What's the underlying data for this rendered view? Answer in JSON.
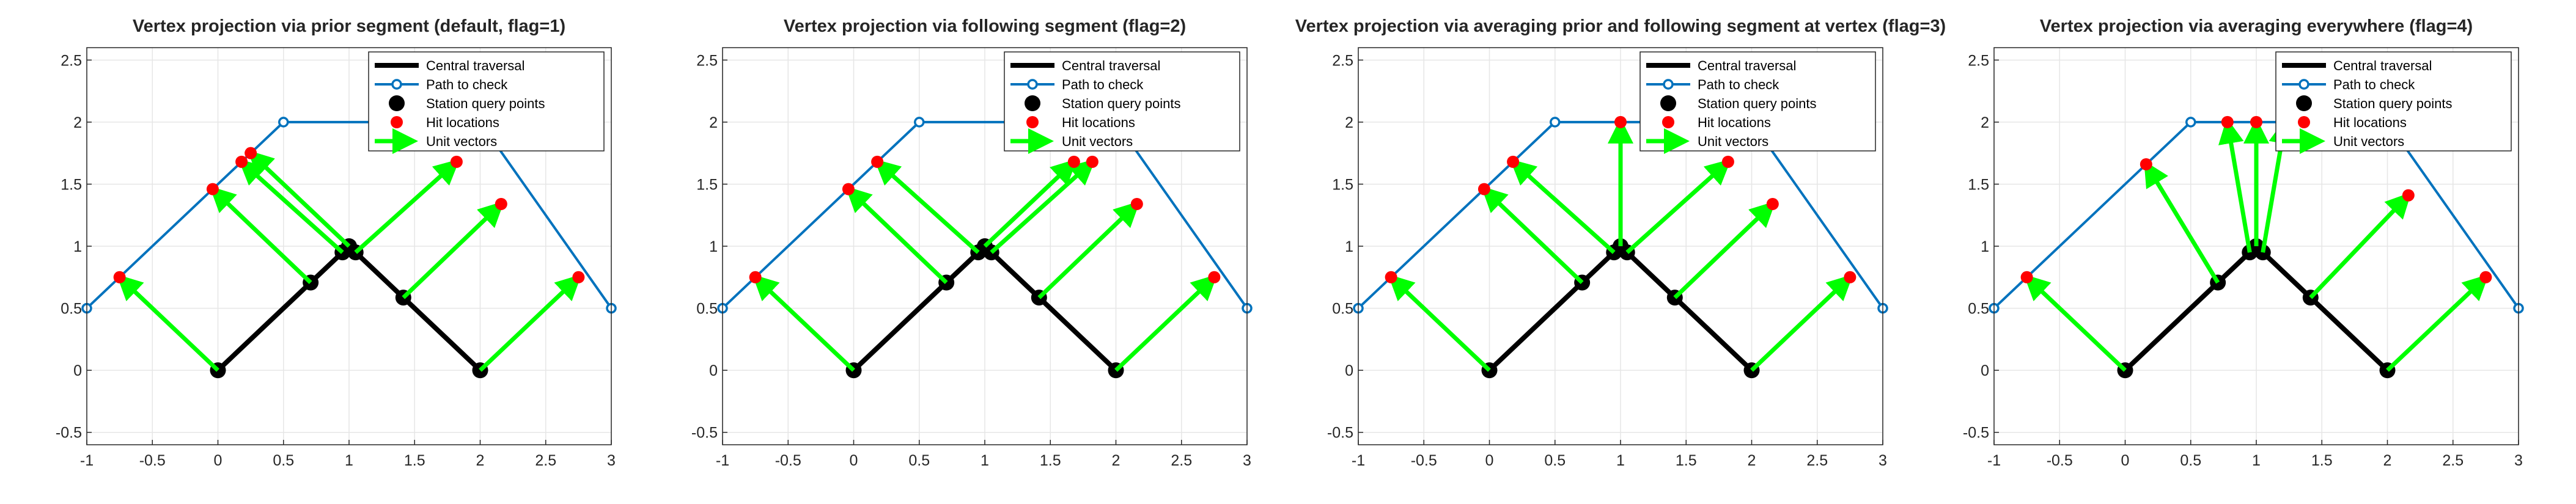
{
  "chart_data": [
    {
      "type": "line",
      "title": "Vertex projection via prior segment (default, flag=1)",
      "xlim": [
        -1,
        3
      ],
      "ylim": [
        -0.6,
        2.6
      ],
      "xticks": [
        "-1",
        "-0.5",
        "0",
        "0.5",
        "1",
        "1.5",
        "2",
        "2.5",
        "3"
      ],
      "yticks": [
        "-0.5",
        "0",
        "0.5",
        "1",
        "1.5",
        "2",
        "2.5"
      ],
      "grid": true,
      "legend_position": "top-right",
      "legend": [
        "Central traversal",
        "Path to check",
        "Station query points",
        "Hit locations",
        "Unit vectors"
      ],
      "central_traversal": [
        [
          0,
          0
        ],
        [
          1,
          1
        ],
        [
          2,
          0
        ]
      ],
      "path_to_check": [
        [
          -1,
          0.5
        ],
        [
          0.5,
          2
        ],
        [
          2,
          2
        ],
        [
          3,
          0.5
        ]
      ],
      "station_points": [
        [
          0,
          0
        ],
        [
          0.707,
          0.707
        ],
        [
          0.95,
          0.95
        ],
        [
          1,
          1
        ],
        [
          1.05,
          0.95
        ],
        [
          1.414,
          0.586
        ],
        [
          2,
          0
        ]
      ],
      "hit_points": [
        [
          -0.75,
          0.75
        ],
        [
          -0.04,
          1.46
        ],
        [
          0.18,
          1.68
        ],
        [
          0.25,
          1.75
        ],
        [
          1.82,
          1.68
        ],
        [
          2.16,
          1.34
        ],
        [
          2.75,
          0.75
        ]
      ],
      "unit_vectors": [
        [
          [
            0,
            0
          ],
          [
            -0.75,
            0.75
          ]
        ],
        [
          [
            0.707,
            0.707
          ],
          [
            -0.04,
            1.46
          ]
        ],
        [
          [
            0.95,
            0.95
          ],
          [
            0.18,
            1.68
          ]
        ],
        [
          [
            1,
            1
          ],
          [
            0.25,
            1.75
          ]
        ],
        [
          [
            1.05,
            0.95
          ],
          [
            1.82,
            1.68
          ]
        ],
        [
          [
            1.414,
            0.586
          ],
          [
            2.16,
            1.34
          ]
        ],
        [
          [
            2,
            0
          ],
          [
            2.75,
            0.75
          ]
        ]
      ]
    },
    {
      "type": "line",
      "title": "Vertex projection via following segment (flag=2)",
      "xlim": [
        -1,
        3
      ],
      "ylim": [
        -0.6,
        2.6
      ],
      "xticks": [
        "-1",
        "-0.5",
        "0",
        "0.5",
        "1",
        "1.5",
        "2",
        "2.5",
        "3"
      ],
      "yticks": [
        "-0.5",
        "0",
        "0.5",
        "1",
        "1.5",
        "2",
        "2.5"
      ],
      "grid": true,
      "legend_position": "top-right",
      "legend": [
        "Central traversal",
        "Path to check",
        "Station query points",
        "Hit locations",
        "Unit vectors"
      ],
      "central_traversal": [
        [
          0,
          0
        ],
        [
          1,
          1
        ],
        [
          2,
          0
        ]
      ],
      "path_to_check": [
        [
          -1,
          0.5
        ],
        [
          0.5,
          2
        ],
        [
          2,
          2
        ],
        [
          3,
          0.5
        ]
      ],
      "station_points": [
        [
          0,
          0
        ],
        [
          0.707,
          0.707
        ],
        [
          0.95,
          0.95
        ],
        [
          1,
          1
        ],
        [
          1.05,
          0.95
        ],
        [
          1.414,
          0.586
        ],
        [
          2,
          0
        ]
      ],
      "hit_points": [
        [
          -0.75,
          0.75
        ],
        [
          -0.04,
          1.46
        ],
        [
          0.18,
          1.68
        ],
        [
          1.68,
          1.68
        ],
        [
          1.82,
          1.68
        ],
        [
          2.16,
          1.34
        ],
        [
          2.75,
          0.75
        ]
      ],
      "unit_vectors": [
        [
          [
            0,
            0
          ],
          [
            -0.75,
            0.75
          ]
        ],
        [
          [
            0.707,
            0.707
          ],
          [
            -0.04,
            1.46
          ]
        ],
        [
          [
            0.95,
            0.95
          ],
          [
            0.18,
            1.68
          ]
        ],
        [
          [
            1,
            1
          ],
          [
            1.68,
            1.68
          ]
        ],
        [
          [
            1.05,
            0.95
          ],
          [
            1.82,
            1.68
          ]
        ],
        [
          [
            1.414,
            0.586
          ],
          [
            2.16,
            1.34
          ]
        ],
        [
          [
            2,
            0
          ],
          [
            2.75,
            0.75
          ]
        ]
      ]
    },
    {
      "type": "line",
      "title": "Vertex projection via averaging prior and following segment at vertex (flag=3)",
      "xlim": [
        -1,
        3
      ],
      "ylim": [
        -0.6,
        2.6
      ],
      "xticks": [
        "-1",
        "-0.5",
        "0",
        "0.5",
        "1",
        "1.5",
        "2",
        "2.5",
        "3"
      ],
      "yticks": [
        "-0.5",
        "0",
        "0.5",
        "1",
        "1.5",
        "2",
        "2.5"
      ],
      "grid": true,
      "legend_position": "top-right",
      "legend": [
        "Central traversal",
        "Path to check",
        "Station query points",
        "Hit locations",
        "Unit vectors"
      ],
      "central_traversal": [
        [
          0,
          0
        ],
        [
          1,
          1
        ],
        [
          2,
          0
        ]
      ],
      "path_to_check": [
        [
          -1,
          0.5
        ],
        [
          0.5,
          2
        ],
        [
          2,
          2
        ],
        [
          3,
          0.5
        ]
      ],
      "station_points": [
        [
          0,
          0
        ],
        [
          0.707,
          0.707
        ],
        [
          0.95,
          0.95
        ],
        [
          1,
          1
        ],
        [
          1.05,
          0.95
        ],
        [
          1.414,
          0.586
        ],
        [
          2,
          0
        ]
      ],
      "hit_points": [
        [
          -0.75,
          0.75
        ],
        [
          -0.04,
          1.46
        ],
        [
          0.18,
          1.68
        ],
        [
          1,
          2
        ],
        [
          1.82,
          1.68
        ],
        [
          2.16,
          1.34
        ],
        [
          2.75,
          0.75
        ]
      ],
      "unit_vectors": [
        [
          [
            0,
            0
          ],
          [
            -0.75,
            0.75
          ]
        ],
        [
          [
            0.707,
            0.707
          ],
          [
            -0.04,
            1.46
          ]
        ],
        [
          [
            0.95,
            0.95
          ],
          [
            0.18,
            1.68
          ]
        ],
        [
          [
            1,
            1
          ],
          [
            1,
            2
          ]
        ],
        [
          [
            1.05,
            0.95
          ],
          [
            1.82,
            1.68
          ]
        ],
        [
          [
            1.414,
            0.586
          ],
          [
            2.16,
            1.34
          ]
        ],
        [
          [
            2,
            0
          ],
          [
            2.75,
            0.75
          ]
        ]
      ]
    },
    {
      "type": "line",
      "title": "Vertex projection via averaging everywhere (flag=4)",
      "xlim": [
        -1,
        3
      ],
      "ylim": [
        -0.6,
        2.6
      ],
      "xticks": [
        "-1",
        "-0.5",
        "0",
        "0.5",
        "1",
        "1.5",
        "2",
        "2.5",
        "3"
      ],
      "yticks": [
        "-0.5",
        "0",
        "0.5",
        "1",
        "1.5",
        "2",
        "2.5"
      ],
      "grid": true,
      "legend_position": "top-right",
      "legend": [
        "Central traversal",
        "Path to check",
        "Station query points",
        "Hit locations",
        "Unit vectors"
      ],
      "central_traversal": [
        [
          0,
          0
        ],
        [
          1,
          1
        ],
        [
          2,
          0
        ]
      ],
      "path_to_check": [
        [
          -1,
          0.5
        ],
        [
          0.5,
          2
        ],
        [
          2,
          2
        ],
        [
          3,
          0.5
        ]
      ],
      "station_points": [
        [
          0,
          0
        ],
        [
          0.707,
          0.707
        ],
        [
          0.95,
          0.95
        ],
        [
          1,
          1
        ],
        [
          1.05,
          0.95
        ],
        [
          1.414,
          0.586
        ],
        [
          2,
          0
        ]
      ],
      "hit_points": [
        [
          -0.75,
          0.75
        ],
        [
          0.16,
          1.66
        ],
        [
          0.78,
          2
        ],
        [
          1,
          2
        ],
        [
          1.22,
          2
        ],
        [
          2.16,
          1.41
        ],
        [
          2.75,
          0.75
        ]
      ],
      "unit_vectors": [
        [
          [
            0,
            0
          ],
          [
            -0.75,
            0.75
          ]
        ],
        [
          [
            0.707,
            0.707
          ],
          [
            0.16,
            1.66
          ]
        ],
        [
          [
            0.95,
            0.95
          ],
          [
            0.78,
            2
          ]
        ],
        [
          [
            1,
            1
          ],
          [
            1,
            2
          ]
        ],
        [
          [
            1.05,
            0.95
          ],
          [
            1.22,
            2
          ]
        ],
        [
          [
            1.414,
            0.586
          ],
          [
            2.16,
            1.41
          ]
        ],
        [
          [
            2,
            0
          ],
          [
            2.75,
            0.75
          ]
        ]
      ]
    }
  ],
  "colors": {
    "central": "#000000",
    "path": "#0072BD",
    "station": "#000000",
    "hit": "#FF0000",
    "vector": "#00FF00",
    "grid": "#E6E6E6",
    "axis": "#262626"
  }
}
